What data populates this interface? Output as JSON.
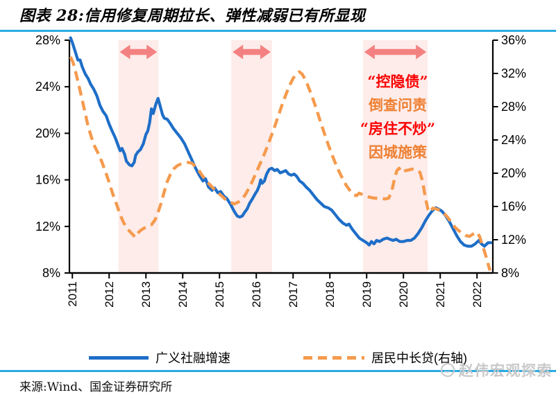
{
  "header": {
    "title": "图表 28:信用修复周期拉长、弹性减弱已有所显现"
  },
  "footer": {
    "source": "来源:Wind、国金证券研究所",
    "watermark": "赵伟宏观探索"
  },
  "colors": {
    "accent_rule": "#29abe2",
    "blue_line": "#1e6ec8",
    "orange_line": "#f59a4d",
    "band_fill": "#fdecea",
    "arrow_fill": "#f48181",
    "annotation_red": "#fb0000",
    "annotation_orange": "#ee8033",
    "axis": "#000000"
  },
  "chart_data": {
    "type": "line",
    "title": "图表 28:信用修复周期拉长、弹性减弱已有所显现",
    "xlabel": "",
    "ylabel_left": "",
    "ylabel_right": "",
    "grid": false,
    "legend_position": "bottom",
    "x_domain": [
      2010.92,
      2022.43
    ],
    "x_ticks": [
      2011,
      2012,
      2013,
      2014,
      2015,
      2016,
      2017,
      2018,
      2019,
      2020,
      2021,
      2022
    ],
    "left_axis": {
      "min": 8,
      "max": 28,
      "ticks": [
        8,
        12,
        16,
        20,
        24,
        28
      ],
      "tick_labels": [
        "8%",
        "12%",
        "16%",
        "20%",
        "24%",
        "28%"
      ]
    },
    "right_axis": {
      "min": 8,
      "max": 36,
      "ticks": [
        8,
        12,
        16,
        20,
        24,
        28,
        32,
        36
      ],
      "tick_labels": [
        "8%",
        "12%",
        "16%",
        "20%",
        "24%",
        "28%",
        "32%",
        "36%"
      ]
    },
    "highlight_bands": [
      {
        "from": 2012.25,
        "to": 2013.34
      },
      {
        "from": 2015.32,
        "to": 2016.43
      },
      {
        "from": 2018.9,
        "to": 2020.66
      }
    ],
    "annotations": [
      {
        "text": "“控隐债”",
        "color": "#fb0000",
        "x": 573,
        "y": 77
      },
      {
        "text": "倒查问责",
        "color": "#ee8033",
        "x": 573,
        "y": 111
      },
      {
        "text": "“房住不炒”",
        "color": "#fb0000",
        "x": 573,
        "y": 145
      },
      {
        "text": "因城施策",
        "color": "#ee8033",
        "x": 573,
        "y": 179
      }
    ],
    "series": [
      {
        "name": "广义社融增速",
        "axis": "left",
        "style": "solid",
        "color": "#1e6ec8",
        "points": [
          [
            2010.95,
            28.2
          ],
          [
            2011.0,
            27.8
          ],
          [
            2011.08,
            27.0
          ],
          [
            2011.15,
            26.3
          ],
          [
            2011.21,
            26.3
          ],
          [
            2011.27,
            25.7
          ],
          [
            2011.35,
            25.1
          ],
          [
            2011.43,
            24.7
          ],
          [
            2011.5,
            24.2
          ],
          [
            2011.58,
            23.8
          ],
          [
            2011.67,
            23.2
          ],
          [
            2011.75,
            22.4
          ],
          [
            2011.83,
            21.9
          ],
          [
            2011.92,
            21.5
          ],
          [
            2012.0,
            20.8
          ],
          [
            2012.08,
            20.2
          ],
          [
            2012.17,
            19.6
          ],
          [
            2012.25,
            18.9
          ],
          [
            2012.3,
            18.5
          ],
          [
            2012.35,
            18.7
          ],
          [
            2012.42,
            18.2
          ],
          [
            2012.47,
            17.6
          ],
          [
            2012.55,
            17.3
          ],
          [
            2012.62,
            17.2
          ],
          [
            2012.68,
            17.5
          ],
          [
            2012.72,
            18.1
          ],
          [
            2012.78,
            18.4
          ],
          [
            2012.85,
            18.6
          ],
          [
            2012.93,
            19.1
          ],
          [
            2013.0,
            19.9
          ],
          [
            2013.05,
            20.2
          ],
          [
            2013.1,
            20.9
          ],
          [
            2013.15,
            22.1
          ],
          [
            2013.2,
            21.7
          ],
          [
            2013.27,
            22.5
          ],
          [
            2013.33,
            23.0
          ],
          [
            2013.4,
            22.2
          ],
          [
            2013.45,
            21.6
          ],
          [
            2013.5,
            21.3
          ],
          [
            2013.58,
            21.2
          ],
          [
            2013.65,
            20.9
          ],
          [
            2013.75,
            20.4
          ],
          [
            2013.85,
            20.0
          ],
          [
            2013.95,
            19.6
          ],
          [
            2014.05,
            19.1
          ],
          [
            2014.15,
            18.4
          ],
          [
            2014.25,
            17.7
          ],
          [
            2014.35,
            17.0
          ],
          [
            2014.45,
            16.4
          ],
          [
            2014.55,
            15.9
          ],
          [
            2014.62,
            16.1
          ],
          [
            2014.7,
            15.4
          ],
          [
            2014.8,
            15.1
          ],
          [
            2014.87,
            15.3
          ],
          [
            2014.95,
            14.9
          ],
          [
            2015.03,
            15.0
          ],
          [
            2015.12,
            14.6
          ],
          [
            2015.2,
            14.4
          ],
          [
            2015.3,
            13.9
          ],
          [
            2015.4,
            13.3
          ],
          [
            2015.48,
            12.9
          ],
          [
            2015.55,
            12.8
          ],
          [
            2015.62,
            12.9
          ],
          [
            2015.68,
            13.2
          ],
          [
            2015.75,
            13.5
          ],
          [
            2015.82,
            14.0
          ],
          [
            2015.9,
            14.4
          ],
          [
            2015.97,
            14.8
          ],
          [
            2016.03,
            15.1
          ],
          [
            2016.08,
            15.5
          ],
          [
            2016.12,
            16.0
          ],
          [
            2016.16,
            15.7
          ],
          [
            2016.22,
            15.9
          ],
          [
            2016.28,
            16.5
          ],
          [
            2016.35,
            16.9
          ],
          [
            2016.42,
            17.0
          ],
          [
            2016.5,
            16.8
          ],
          [
            2016.57,
            16.9
          ],
          [
            2016.65,
            16.6
          ],
          [
            2016.73,
            16.7
          ],
          [
            2016.8,
            16.8
          ],
          [
            2016.88,
            16.5
          ],
          [
            2016.95,
            16.4
          ],
          [
            2017.03,
            16.5
          ],
          [
            2017.1,
            16.3
          ],
          [
            2017.18,
            15.9
          ],
          [
            2017.27,
            15.7
          ],
          [
            2017.35,
            15.4
          ],
          [
            2017.45,
            15.1
          ],
          [
            2017.55,
            14.7
          ],
          [
            2017.65,
            14.3
          ],
          [
            2017.75,
            14.0
          ],
          [
            2017.85,
            13.7
          ],
          [
            2017.95,
            13.6
          ],
          [
            2018.05,
            13.4
          ],
          [
            2018.15,
            13.0
          ],
          [
            2018.25,
            12.6
          ],
          [
            2018.35,
            12.3
          ],
          [
            2018.45,
            12.1
          ],
          [
            2018.52,
            12.2
          ],
          [
            2018.6,
            11.8
          ],
          [
            2018.7,
            11.4
          ],
          [
            2018.8,
            11.0
          ],
          [
            2018.9,
            10.8
          ],
          [
            2019.0,
            10.6
          ],
          [
            2019.07,
            10.4
          ],
          [
            2019.13,
            10.7
          ],
          [
            2019.2,
            10.5
          ],
          [
            2019.27,
            10.8
          ],
          [
            2019.35,
            10.7
          ],
          [
            2019.45,
            10.9
          ],
          [
            2019.55,
            11.0
          ],
          [
            2019.63,
            10.9
          ],
          [
            2019.72,
            10.8
          ],
          [
            2019.8,
            10.9
          ],
          [
            2019.9,
            10.7
          ],
          [
            2020.0,
            10.7
          ],
          [
            2020.1,
            10.8
          ],
          [
            2020.2,
            10.8
          ],
          [
            2020.3,
            11.0
          ],
          [
            2020.4,
            11.4
          ],
          [
            2020.5,
            11.9
          ],
          [
            2020.6,
            12.5
          ],
          [
            2020.7,
            13.0
          ],
          [
            2020.8,
            13.4
          ],
          [
            2020.88,
            13.6
          ],
          [
            2020.95,
            13.5
          ],
          [
            2021.05,
            13.3
          ],
          [
            2021.15,
            12.9
          ],
          [
            2021.25,
            12.4
          ],
          [
            2021.35,
            11.8
          ],
          [
            2021.45,
            11.2
          ],
          [
            2021.55,
            10.7
          ],
          [
            2021.65,
            10.4
          ],
          [
            2021.75,
            10.3
          ],
          [
            2021.85,
            10.3
          ],
          [
            2021.95,
            10.5
          ],
          [
            2022.05,
            10.8
          ],
          [
            2022.12,
            10.5
          ],
          [
            2022.2,
            10.3
          ],
          [
            2022.3,
            10.6
          ],
          [
            2022.38,
            10.6
          ]
        ]
      },
      {
        "name": "居民中长贷(右轴)",
        "axis": "right",
        "style": "dashed",
        "color": "#f59a4d",
        "points": [
          [
            2010.95,
            34.0
          ],
          [
            2011.02,
            33.3
          ],
          [
            2011.1,
            32.0
          ],
          [
            2011.18,
            30.5
          ],
          [
            2011.27,
            28.8
          ],
          [
            2011.35,
            27.2
          ],
          [
            2011.43,
            25.6
          ],
          [
            2011.52,
            24.3
          ],
          [
            2011.6,
            23.3
          ],
          [
            2011.7,
            22.4
          ],
          [
            2011.8,
            21.4
          ],
          [
            2011.9,
            20.2
          ],
          [
            2012.0,
            18.9
          ],
          [
            2012.1,
            17.5
          ],
          [
            2012.2,
            16.3
          ],
          [
            2012.3,
            15.0
          ],
          [
            2012.4,
            14.0
          ],
          [
            2012.5,
            13.3
          ],
          [
            2012.58,
            12.9
          ],
          [
            2012.65,
            12.6
          ],
          [
            2012.7,
            12.3
          ],
          [
            2012.78,
            12.8
          ],
          [
            2012.85,
            13.1
          ],
          [
            2012.95,
            13.4
          ],
          [
            2013.05,
            13.6
          ],
          [
            2013.15,
            13.8
          ],
          [
            2013.25,
            14.4
          ],
          [
            2013.33,
            15.3
          ],
          [
            2013.42,
            16.5
          ],
          [
            2013.5,
            17.8
          ],
          [
            2013.58,
            19.0
          ],
          [
            2013.67,
            19.9
          ],
          [
            2013.75,
            20.5
          ],
          [
            2013.85,
            20.9
          ],
          [
            2013.95,
            21.1
          ],
          [
            2014.05,
            21.2
          ],
          [
            2014.15,
            21.3
          ],
          [
            2014.25,
            21.2
          ],
          [
            2014.4,
            20.6
          ],
          [
            2014.55,
            19.6
          ],
          [
            2014.7,
            18.8
          ],
          [
            2014.85,
            18.1
          ],
          [
            2015.0,
            17.5
          ],
          [
            2015.15,
            16.9
          ],
          [
            2015.3,
            16.5
          ],
          [
            2015.4,
            16.3
          ],
          [
            2015.5,
            16.5
          ],
          [
            2015.6,
            16.8
          ],
          [
            2015.7,
            17.4
          ],
          [
            2015.8,
            18.2
          ],
          [
            2015.9,
            19.1
          ],
          [
            2016.0,
            20.1
          ],
          [
            2016.1,
            21.1
          ],
          [
            2016.2,
            22.1
          ],
          [
            2016.3,
            23.2
          ],
          [
            2016.4,
            24.4
          ],
          [
            2016.5,
            25.6
          ],
          [
            2016.6,
            26.9
          ],
          [
            2016.7,
            28.2
          ],
          [
            2016.8,
            29.4
          ],
          [
            2016.9,
            30.5
          ],
          [
            2017.0,
            31.4
          ],
          [
            2017.1,
            32.0
          ],
          [
            2017.17,
            32.2
          ],
          [
            2017.25,
            31.9
          ],
          [
            2017.35,
            31.1
          ],
          [
            2017.45,
            30.0
          ],
          [
            2017.55,
            28.8
          ],
          [
            2017.65,
            27.5
          ],
          [
            2017.75,
            26.1
          ],
          [
            2017.85,
            24.8
          ],
          [
            2017.95,
            23.5
          ],
          [
            2018.05,
            22.3
          ],
          [
            2018.15,
            21.2
          ],
          [
            2018.25,
            20.2
          ],
          [
            2018.35,
            19.3
          ],
          [
            2018.45,
            18.5
          ],
          [
            2018.55,
            17.9
          ],
          [
            2018.65,
            17.4
          ],
          [
            2018.72,
            17.3
          ],
          [
            2018.8,
            17.6
          ],
          [
            2018.9,
            17.4
          ],
          [
            2019.0,
            17.2
          ],
          [
            2019.1,
            17.1
          ],
          [
            2019.2,
            17.0
          ],
          [
            2019.35,
            17.0
          ],
          [
            2019.5,
            16.9
          ],
          [
            2019.6,
            17.0
          ],
          [
            2019.68,
            17.8
          ],
          [
            2019.75,
            19.2
          ],
          [
            2019.82,
            20.3
          ],
          [
            2019.88,
            20.6
          ],
          [
            2019.95,
            20.1
          ],
          [
            2020.05,
            20.3
          ],
          [
            2020.15,
            20.4
          ],
          [
            2020.25,
            20.5
          ],
          [
            2020.35,
            20.4
          ],
          [
            2020.45,
            20.1
          ],
          [
            2020.52,
            19.0
          ],
          [
            2020.6,
            17.0
          ],
          [
            2020.67,
            15.6
          ],
          [
            2020.72,
            15.3
          ],
          [
            2020.8,
            15.8
          ],
          [
            2020.9,
            15.7
          ],
          [
            2021.0,
            15.5
          ],
          [
            2021.1,
            15.2
          ],
          [
            2021.2,
            14.7
          ],
          [
            2021.3,
            14.1
          ],
          [
            2021.4,
            13.5
          ],
          [
            2021.5,
            13.1
          ],
          [
            2021.6,
            12.8
          ],
          [
            2021.7,
            12.5
          ],
          [
            2021.8,
            12.4
          ],
          [
            2021.9,
            12.7
          ],
          [
            2022.0,
            12.9
          ],
          [
            2022.07,
            12.4
          ],
          [
            2022.15,
            11.3
          ],
          [
            2022.25,
            9.9
          ],
          [
            2022.35,
            8.3
          ]
        ]
      }
    ]
  }
}
